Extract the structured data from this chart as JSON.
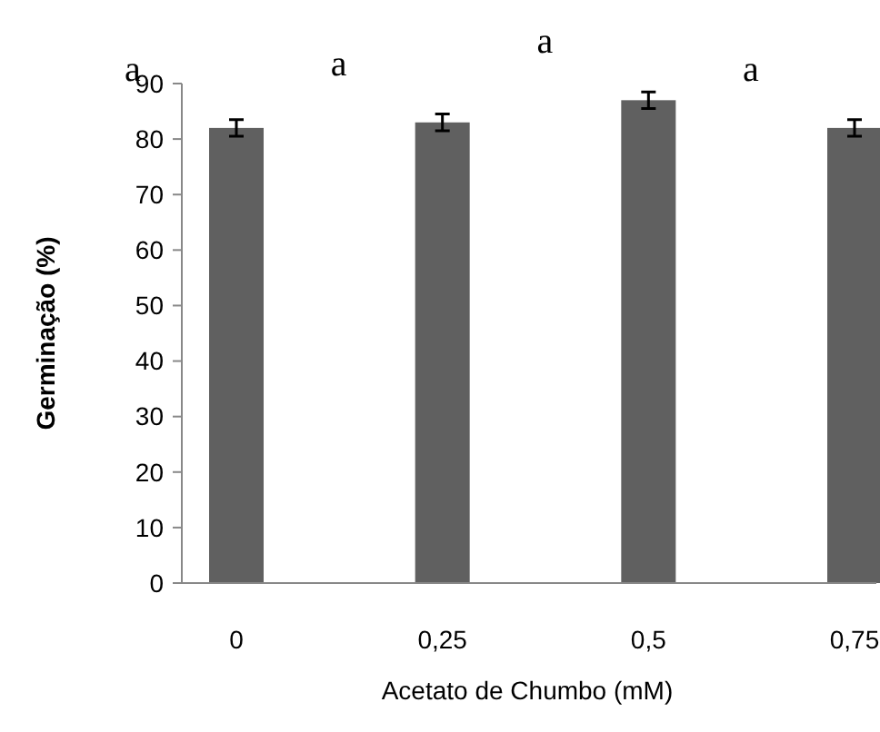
{
  "chart_data": {
    "type": "bar",
    "xlabel": "Acetato de Chumbo (mM)",
    "ylabel": "Germinação (%)",
    "categories": [
      "0",
      "0,25",
      "0,5",
      "0,75"
    ],
    "values": [
      82,
      83,
      87,
      82
    ],
    "errors": [
      1.5,
      1.5,
      1.5,
      1.5
    ],
    "color": "#606060",
    "ylim": [
      0,
      90
    ],
    "yticks": [
      0,
      10,
      20,
      30,
      40,
      50,
      60,
      70,
      80,
      90
    ],
    "grid": false,
    "annotations": [
      "a",
      "a",
      "a",
      "a"
    ]
  }
}
